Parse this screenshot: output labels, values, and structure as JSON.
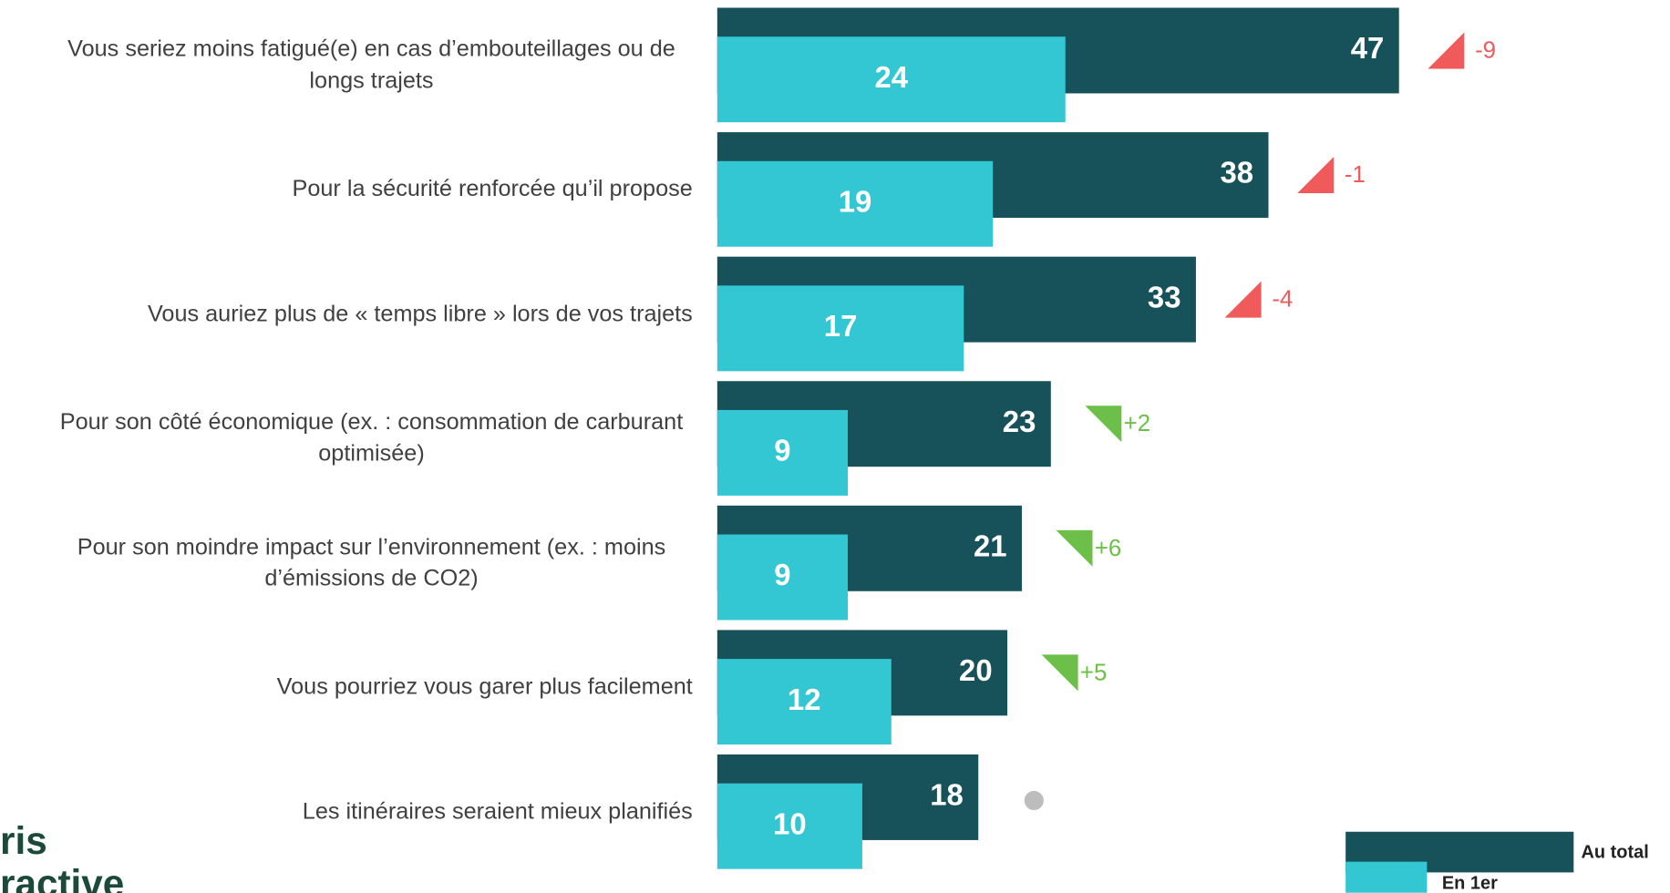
{
  "chart_data": {
    "type": "bar",
    "orientation": "horizontal",
    "categories": [
      "Vous seriez moins fatigué(e) en cas d’embouteillages ou de longs trajets",
      "Pour la sécurité renforcée qu’il propose",
      "Vous auriez plus de « temps libre » lors de vos trajets",
      "Pour son côté économique (ex. : consommation de carburant optimisée)",
      "Pour son moindre impact sur l’environnement (ex. : moins d’émissions de CO2)",
      "Vous pourriez vous garer plus facilement",
      "Les itinéraires seraient mieux planifiés"
    ],
    "series": [
      {
        "name": "Au total",
        "color": "#17525a",
        "values": [
          47,
          38,
          33,
          23,
          21,
          20,
          18
        ]
      },
      {
        "name": "En 1er",
        "color": "#33c6d3",
        "values": [
          24,
          19,
          17,
          9,
          9,
          12,
          10
        ]
      }
    ],
    "changes": {
      "values": [
        -9,
        -1,
        -4,
        2,
        6,
        5,
        null
      ],
      "value_labels": [
        "-9",
        "-1",
        "-4",
        "+2",
        "+6",
        "+5",
        null
      ],
      "up_color": "#f05a5a",
      "down_color": "#6cc04a",
      "none_color": "#bdbdbd"
    },
    "xlim": [
      0,
      50
    ],
    "logo": [
      "ris",
      "ractive"
    ]
  }
}
